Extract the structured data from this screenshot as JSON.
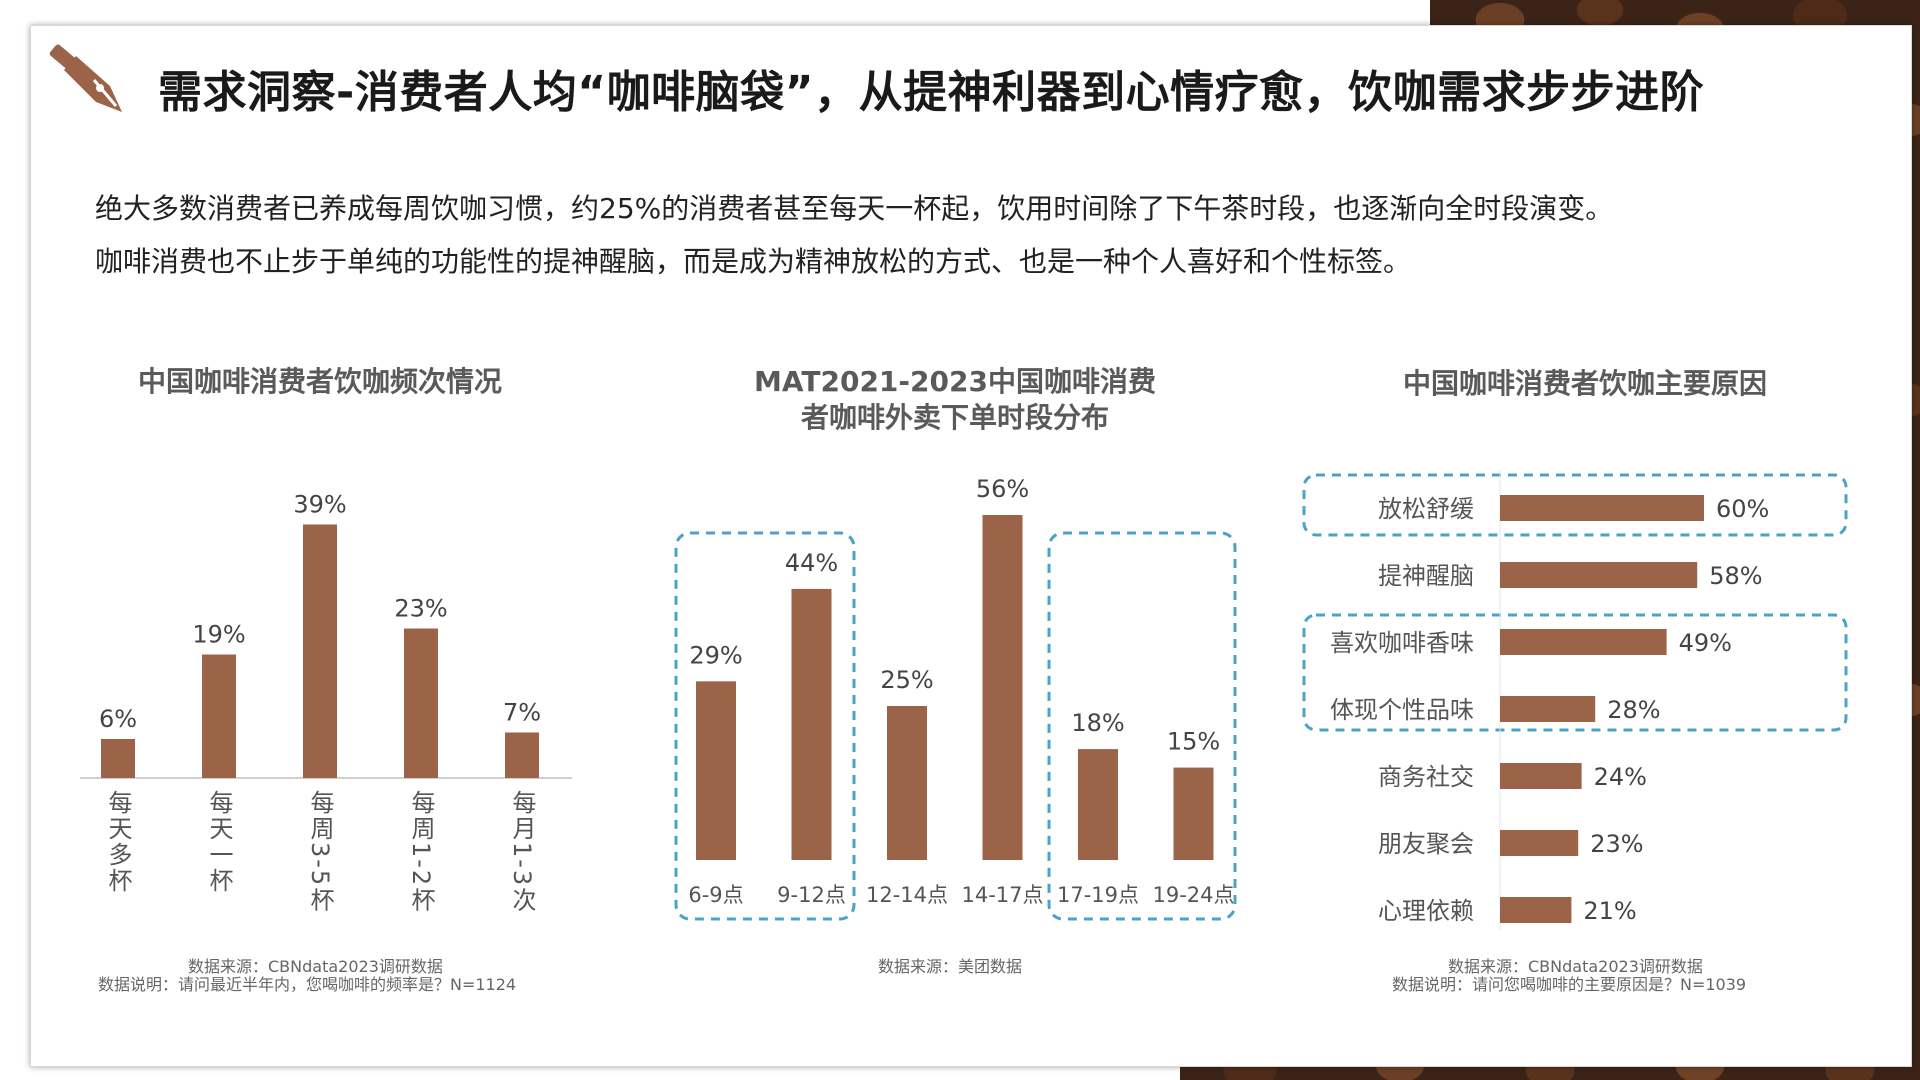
{
  "slide": {
    "title": "需求洞察-消费者人均“咖啡脑袋”，从提神利器到心情疗愈，饮咖需求步步进阶",
    "body_lines": [
      "绝大多数消费者已养成每周饮咖习惯，约25%的消费者甚至每天一杯起，饮用时间除了下午茶时段，也逐渐向全时段演变。",
      "咖啡消费也不止步于单纯的功能性的提神醒脑，而是成为精神放松的方式、也是一种个人喜好和个性标签。"
    ],
    "colors": {
      "bar": "#9b6347",
      "highlight_box": "#4aa3c7",
      "text": "#222222",
      "title": "#1a1a1a"
    }
  },
  "chart_data": [
    {
      "type": "bar",
      "title": "中国咖啡消费者饮咖频次情况",
      "categories": [
        "每天多杯",
        "每天一杯",
        "每周3-5杯",
        "每周1-2杯",
        "每月1-3次"
      ],
      "values": [
        6,
        19,
        39,
        23,
        7
      ],
      "value_labels": [
        "6%",
        "19%",
        "39%",
        "23%",
        "7%"
      ],
      "unit": "%",
      "ylim": [
        0,
        40
      ],
      "source": [
        "数据来源：CBNdata2023调研数据",
        "数据说明：请问最近半年内，您喝咖啡的频率是？N=1124"
      ]
    },
    {
      "type": "bar",
      "title": [
        "MAT2021-2023中国咖啡消费",
        "者咖啡外卖下单时段分布"
      ],
      "categories": [
        "6-9点",
        "9-12点",
        "12-14点",
        "14-17点",
        "17-19点",
        "19-24点"
      ],
      "values": [
        29,
        44,
        25,
        56,
        18,
        15
      ],
      "value_labels": [
        "29%",
        "44%",
        "25%",
        "56%",
        "18%",
        "15%"
      ],
      "unit": "%",
      "ylim": [
        0,
        56
      ],
      "highlight_groups": [
        [
          "6-9点",
          "9-12点"
        ],
        [
          "17-19点",
          "19-24点"
        ]
      ],
      "source": [
        "数据来源：美团数据"
      ]
    },
    {
      "type": "bar",
      "orientation": "horizontal",
      "title": "中国咖啡消费者饮咖主要原因",
      "categories": [
        "放松舒缓",
        "提神醒脑",
        "喜欢咖啡香味",
        "体现个性品味",
        "商务社交",
        "朋友聚会",
        "心理依赖"
      ],
      "values": [
        60,
        58,
        49,
        28,
        24,
        23,
        21
      ],
      "value_labels": [
        "60%",
        "58%",
        "49%",
        "28%",
        "24%",
        "23%",
        "21%"
      ],
      "unit": "%",
      "xlim": [
        0,
        60
      ],
      "highlight_groups": [
        [
          "放松舒缓"
        ],
        [
          "喜欢咖啡香味",
          "体现个性品味"
        ]
      ],
      "source": [
        "数据来源：CBNdata2023调研数据",
        "数据说明：请问您喝咖啡的主要原因是？N=1039"
      ]
    }
  ]
}
